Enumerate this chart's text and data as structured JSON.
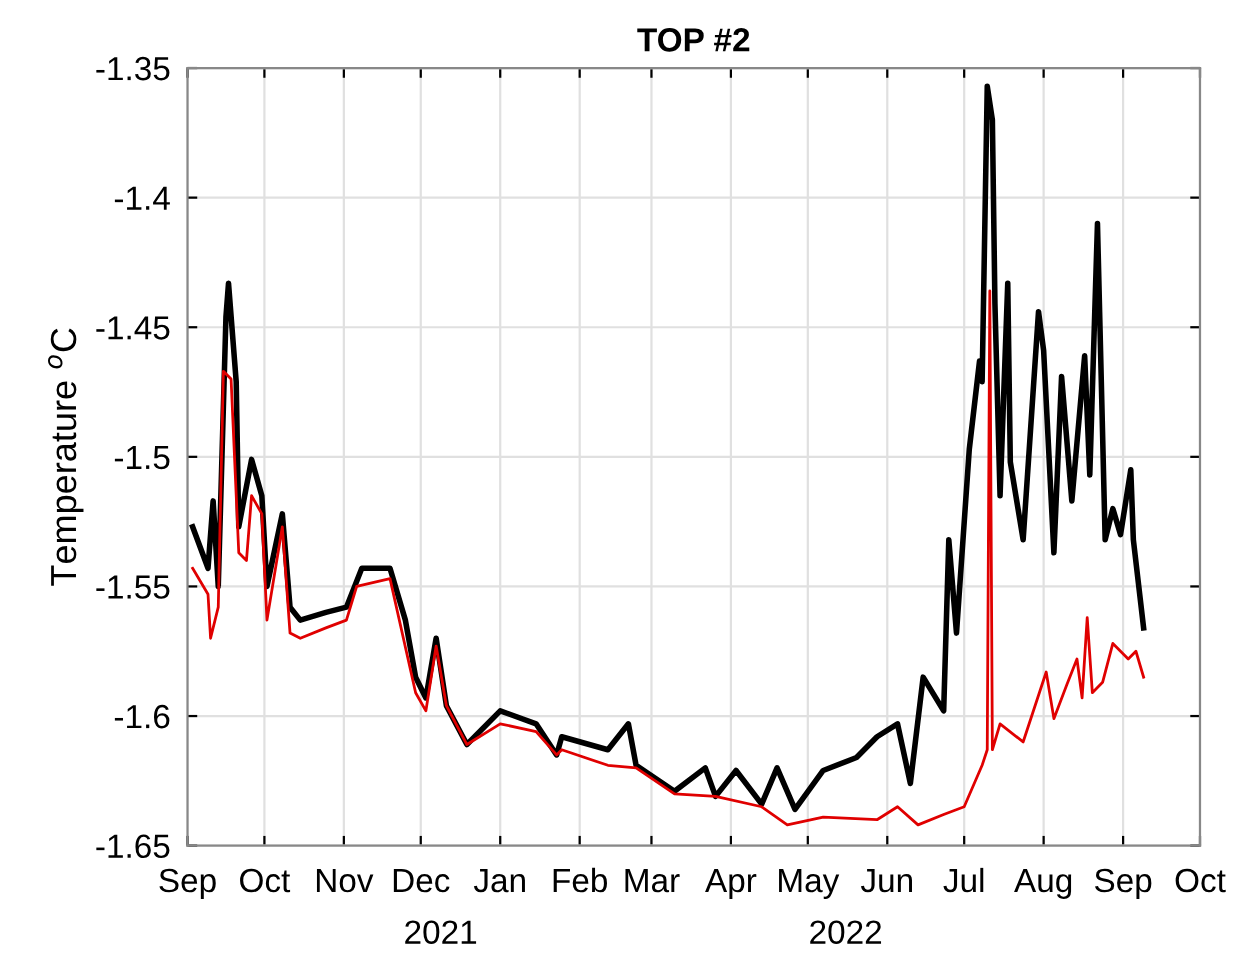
{
  "chart_data": {
    "type": "line",
    "title": "TOP #2",
    "ylabel": "Temperature $^{o}$C",
    "annotations": [
      "2021",
      "2022"
    ],
    "xlim": [
      "2021-09-01",
      "2022-10-01"
    ],
    "xticks": [
      {
        "value": "2021-09-01",
        "label": "Sep"
      },
      {
        "value": "2021-10-01",
        "label": "Oct"
      },
      {
        "value": "2021-11-01",
        "label": "Nov"
      },
      {
        "value": "2021-12-01",
        "label": "Dec"
      },
      {
        "value": "2022-01-01",
        "label": "Jan"
      },
      {
        "value": "2022-02-01",
        "label": "Feb"
      },
      {
        "value": "2022-03-01",
        "label": "Mar"
      },
      {
        "value": "2022-04-01",
        "label": "Apr"
      },
      {
        "value": "2022-05-01",
        "label": "May"
      },
      {
        "value": "2022-06-01",
        "label": "Jun"
      },
      {
        "value": "2022-07-01",
        "label": "Jul"
      },
      {
        "value": "2022-08-01",
        "label": "Aug"
      },
      {
        "value": "2022-09-01",
        "label": "Sep"
      },
      {
        "value": "2022-10-01",
        "label": "Oct"
      }
    ],
    "ylim": [
      -1.65,
      -1.35
    ],
    "yticks": [
      -1.65,
      -1.6,
      -1.55,
      -1.5,
      -1.45,
      -1.4,
      -1.35
    ],
    "grid": true,
    "series": [
      {
        "color": "#000000",
        "x": [
          "2021-09-03",
          "2021-09-09",
          "2021-09-11",
          "2021-09-13",
          "2021-09-16",
          "2021-09-17",
          "2021-09-20",
          "2021-09-21",
          "2021-09-26",
          "2021-09-30",
          "2021-10-02",
          "2021-10-08",
          "2021-10-11",
          "2021-10-15",
          "2021-10-25",
          "2021-11-02",
          "2021-11-08",
          "2021-11-13",
          "2021-11-19",
          "2021-11-25",
          "2021-11-29",
          "2021-12-03",
          "2021-12-07",
          "2021-12-11",
          "2021-12-19",
          "2022-01-01",
          "2022-01-15",
          "2022-01-23",
          "2022-01-25",
          "2022-02-12",
          "2022-02-20",
          "2022-02-23",
          "2022-03-10",
          "2022-03-22",
          "2022-03-26",
          "2022-04-03",
          "2022-04-13",
          "2022-04-19",
          "2022-04-26",
          "2022-05-07",
          "2022-05-20",
          "2022-05-28",
          "2022-06-05",
          "2022-06-10",
          "2022-06-15",
          "2022-06-23",
          "2022-06-25",
          "2022-06-28",
          "2022-07-03",
          "2022-07-07",
          "2022-07-08",
          "2022-07-10",
          "2022-07-12",
          "2022-07-13",
          "2022-07-15",
          "2022-07-18",
          "2022-07-19",
          "2022-07-24",
          "2022-07-30",
          "2022-08-01",
          "2022-08-05",
          "2022-08-08",
          "2022-08-12",
          "2022-08-17",
          "2022-08-19",
          "2022-08-22",
          "2022-08-25",
          "2022-08-28",
          "2022-08-31",
          "2022-09-04",
          "2022-09-05",
          "2022-09-09"
        ],
        "values": [
          -1.527,
          -1.543,
          -1.517,
          -1.55,
          -1.446,
          -1.433,
          -1.471,
          -1.527,
          -1.501,
          -1.515,
          -1.55,
          -1.522,
          -1.558,
          -1.563,
          -1.56,
          -1.558,
          -1.543,
          -1.543,
          -1.543,
          -1.563,
          -1.585,
          -1.593,
          -1.57,
          -1.596,
          -1.611,
          -1.598,
          -1.603,
          -1.615,
          -1.608,
          -1.613,
          -1.603,
          -1.619,
          -1.629,
          -1.62,
          -1.631,
          -1.621,
          -1.634,
          -1.62,
          -1.636,
          -1.621,
          -1.616,
          -1.608,
          -1.603,
          -1.626,
          -1.585,
          -1.598,
          -1.532,
          -1.568,
          -1.497,
          -1.463,
          -1.471,
          -1.357,
          -1.37,
          -1.441,
          -1.515,
          -1.433,
          -1.502,
          -1.532,
          -1.444,
          -1.459,
          -1.537,
          -1.469,
          -1.517,
          -1.461,
          -1.507,
          -1.41,
          -1.532,
          -1.52,
          -1.53,
          -1.505,
          -1.532,
          -1.566
        ]
      },
      {
        "color": "#e00000",
        "x": [
          "2021-09-03",
          "2021-09-09",
          "2021-09-10",
          "2021-09-13",
          "2021-09-15",
          "2021-09-18",
          "2021-09-21",
          "2021-09-24",
          "2021-09-26",
          "2021-09-30",
          "2021-10-02",
          "2021-10-08",
          "2021-10-11",
          "2021-10-15",
          "2021-10-25",
          "2021-11-02",
          "2021-11-06",
          "2021-11-19",
          "2021-11-29",
          "2021-12-03",
          "2021-12-07",
          "2021-12-11",
          "2021-12-19",
          "2022-01-01",
          "2022-01-15",
          "2022-01-23",
          "2022-01-25",
          "2022-02-12",
          "2022-02-23",
          "2022-03-10",
          "2022-03-26",
          "2022-04-13",
          "2022-04-23",
          "2022-05-07",
          "2022-05-28",
          "2022-06-05",
          "2022-06-13",
          "2022-06-23",
          "2022-07-01",
          "2022-07-08",
          "2022-07-10",
          "2022-07-11",
          "2022-07-12",
          "2022-07-15",
          "2022-07-24",
          "2022-08-02",
          "2022-08-05",
          "2022-08-10",
          "2022-08-14",
          "2022-08-16",
          "2022-08-18",
          "2022-08-20",
          "2022-08-24",
          "2022-08-28",
          "2022-09-03",
          "2022-09-06",
          "2022-09-09"
        ],
        "values": [
          -1.543,
          -1.553,
          -1.57,
          -1.558,
          -1.467,
          -1.47,
          -1.537,
          -1.54,
          -1.515,
          -1.522,
          -1.563,
          -1.527,
          -1.568,
          -1.57,
          -1.566,
          -1.563,
          -1.55,
          -1.547,
          -1.591,
          -1.598,
          -1.573,
          -1.596,
          -1.611,
          -1.603,
          -1.606,
          -1.615,
          -1.613,
          -1.619,
          -1.62,
          -1.63,
          -1.631,
          -1.635,
          -1.642,
          -1.639,
          -1.64,
          -1.635,
          -1.642,
          -1.638,
          -1.635,
          -1.619,
          -1.613,
          -1.436,
          -1.613,
          -1.603,
          -1.61,
          -1.583,
          -1.601,
          -1.588,
          -1.578,
          -1.593,
          -1.562,
          -1.591,
          -1.587,
          -1.572,
          -1.578,
          -1.575,
          -1.585
        ]
      }
    ]
  }
}
